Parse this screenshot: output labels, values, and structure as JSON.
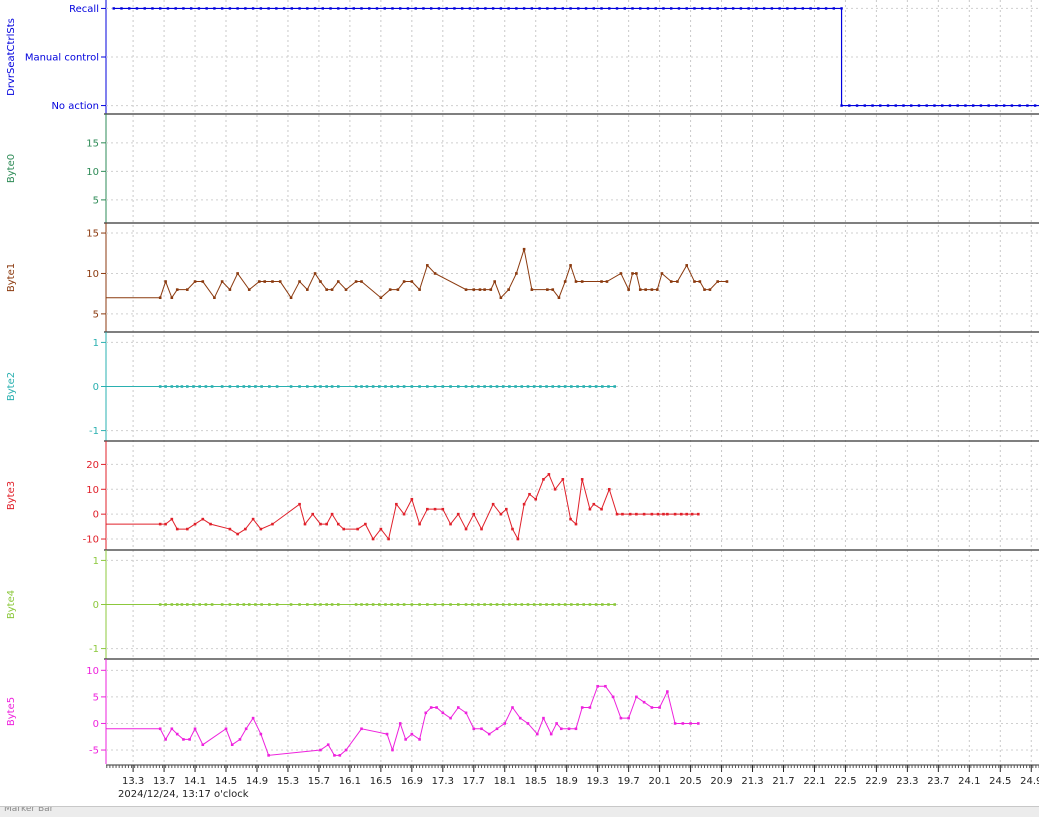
{
  "marker_bar": {
    "label": "Marker Bar"
  },
  "chart_data": {
    "type": "line",
    "xaxis": {
      "range": [
        12.95,
        25.0
      ],
      "ticks": [
        "13.3",
        "13.7",
        "14.1",
        "14.5",
        "14.9",
        "15.3",
        "15.7",
        "16.1",
        "16.5",
        "16.9",
        "17.3",
        "17.7",
        "18.1",
        "18.5",
        "18.9",
        "19.3",
        "19.7",
        "20.1",
        "20.5",
        "20.9",
        "21.3",
        "21.7",
        "22.1",
        "22.5",
        "22.9",
        "23.3",
        "23.7",
        "24.1",
        "24.5",
        "24.9"
      ],
      "caption": "2024/12/24, 13:17 o'clock"
    },
    "panels": [
      {
        "name": "DrvrSeatCtrlSts",
        "color": "#0000dd",
        "categories": [
          "No action",
          "Manual control",
          "Recall"
        ],
        "ylim": [
          -0.05,
          2.05
        ],
        "kind": "step",
        "segments": [
          {
            "x": [
              13.05,
              22.45
            ],
            "y": 2
          },
          {
            "x": [
              22.45,
              25.0
            ],
            "y": 0
          }
        ],
        "dots_dx": 0.1,
        "transition_x": 22.45
      },
      {
        "name": "Byte0",
        "color": "#2e8b57",
        "ylim": [
          2,
          19
        ],
        "yticks": [
          5,
          10,
          15
        ],
        "x": [],
        "y": []
      },
      {
        "name": "Byte1",
        "color": "#8b3a0f",
        "ylim": [
          3.5,
          15.5
        ],
        "yticks": [
          5,
          10,
          15
        ],
        "x": [
          12.95,
          13.65,
          13.72,
          13.8,
          13.87,
          14.0,
          14.1,
          14.2,
          14.35,
          14.45,
          14.55,
          14.65,
          14.8,
          14.93,
          15.0,
          15.1,
          15.2,
          15.34,
          15.45,
          15.55,
          15.65,
          15.72,
          15.8,
          15.87,
          15.95,
          16.05,
          16.18,
          16.25,
          16.5,
          16.62,
          16.72,
          16.8,
          16.9,
          17.0,
          17.1,
          17.2,
          17.6,
          17.7,
          17.78,
          17.84,
          17.92,
          17.97,
          18.05,
          18.15,
          18.25,
          18.35,
          18.45,
          18.65,
          18.72,
          18.8,
          18.88,
          18.95,
          19.02,
          19.1,
          19.35,
          19.42,
          19.6,
          19.7,
          19.75,
          19.8,
          19.85,
          19.92,
          20.0,
          20.07,
          20.13,
          20.25,
          20.33,
          20.45,
          20.55,
          20.62,
          20.68,
          20.75,
          20.85,
          20.97
        ],
        "y": [
          7,
          7,
          9,
          7,
          8,
          8,
          9,
          9,
          7,
          9,
          8,
          10,
          8,
          9,
          9,
          9,
          9,
          7,
          9,
          8,
          10,
          9,
          8,
          8,
          9,
          8,
          9,
          9,
          7,
          8,
          8,
          9,
          9,
          8,
          11,
          10,
          8,
          8,
          8,
          8,
          8,
          9,
          7,
          8,
          10,
          13,
          8,
          8,
          8,
          7,
          9,
          11,
          9,
          9,
          9,
          9,
          10,
          8,
          10,
          10,
          8,
          8,
          8,
          8,
          10,
          9,
          9,
          11,
          9,
          9,
          8,
          8,
          9,
          9
        ]
      },
      {
        "name": "Byte2",
        "color": "#2ab0b0",
        "ylim": [
          -1.1,
          1.1
        ],
        "yticks": [
          -1,
          0,
          1
        ],
        "x": [
          12.95,
          13.65,
          13.72,
          13.8,
          13.87,
          13.93,
          14.0,
          14.08,
          14.16,
          14.24,
          14.32,
          14.45,
          14.55,
          14.65,
          14.73,
          14.8,
          14.88,
          14.96,
          15.06,
          15.16,
          15.34,
          15.45,
          15.55,
          15.65,
          15.72,
          15.8,
          15.87,
          15.95,
          16.18,
          16.25,
          16.32,
          16.4,
          16.48,
          16.56,
          16.64,
          16.72,
          16.8,
          16.9,
          17.0,
          17.1,
          17.2,
          17.3,
          17.4,
          17.5,
          17.6,
          17.68,
          17.76,
          17.84,
          17.92,
          18.0,
          18.08,
          18.16,
          18.24,
          18.32,
          18.4,
          18.48,
          18.56,
          18.64,
          18.72,
          18.8,
          18.88,
          18.96,
          19.04,
          19.12,
          19.2,
          19.28,
          19.36,
          19.44,
          19.52
        ],
        "y": [
          0,
          0,
          0,
          0,
          0,
          0,
          0,
          0,
          0,
          0,
          0,
          0,
          0,
          0,
          0,
          0,
          0,
          0,
          0,
          0,
          0,
          0,
          0,
          0,
          0,
          0,
          0,
          0,
          0,
          0,
          0,
          0,
          0,
          0,
          0,
          0,
          0,
          0,
          0,
          0,
          0,
          0,
          0,
          0,
          0,
          0,
          0,
          0,
          0,
          0,
          0,
          0,
          0,
          0,
          0,
          0,
          0,
          0,
          0,
          0,
          0,
          0,
          0,
          0,
          0,
          0,
          0,
          0,
          0
        ]
      },
      {
        "name": "Byte3",
        "color": "#e0202a",
        "ylim": [
          -12,
          27
        ],
        "yticks": [
          -10,
          0,
          10,
          20
        ],
        "x": [
          12.95,
          13.65,
          13.72,
          13.8,
          13.87,
          14.0,
          14.1,
          14.2,
          14.3,
          14.55,
          14.65,
          14.75,
          14.85,
          14.95,
          15.1,
          15.45,
          15.52,
          15.62,
          15.72,
          15.8,
          15.87,
          15.95,
          16.02,
          16.2,
          16.3,
          16.4,
          16.5,
          16.6,
          16.7,
          16.8,
          16.9,
          17.0,
          17.1,
          17.2,
          17.3,
          17.4,
          17.5,
          17.6,
          17.7,
          17.8,
          17.95,
          18.05,
          18.12,
          18.2,
          18.27,
          18.35,
          18.42,
          18.5,
          18.6,
          18.67,
          18.75,
          18.85,
          18.95,
          19.02,
          19.1,
          19.2,
          19.25,
          19.35,
          19.45,
          19.55,
          19.62,
          19.72,
          19.8,
          19.9,
          20.0,
          20.08,
          20.15,
          20.2,
          20.3,
          20.38,
          20.45,
          20.52,
          20.6
        ],
        "y": [
          -4,
          -4,
          -4,
          -2,
          -6,
          -6,
          -4,
          -2,
          -4,
          -6,
          -8,
          -6,
          -2,
          -6,
          -4,
          4,
          -4,
          0,
          -4,
          -4,
          0,
          -4,
          -6,
          -6,
          -4,
          -10,
          -6,
          -10,
          4,
          0,
          6,
          -4,
          2,
          2,
          2,
          -4,
          0,
          -6,
          0,
          -6,
          4,
          0,
          2,
          -6,
          -10,
          4,
          8,
          6,
          14,
          16,
          10,
          14,
          -2,
          -4,
          14,
          2,
          4,
          2,
          10,
          0,
          0,
          0,
          0,
          0,
          0,
          0,
          0,
          0,
          0,
          0,
          0,
          0,
          0
        ]
      },
      {
        "name": "Byte4",
        "color": "#8cc83c",
        "ylim": [
          -1.1,
          1.1
        ],
        "yticks": [
          -1,
          0,
          1
        ],
        "x": [
          12.95,
          13.65,
          13.72,
          13.8,
          13.87,
          13.93,
          14.0,
          14.08,
          14.16,
          14.24,
          14.32,
          14.45,
          14.55,
          14.65,
          14.73,
          14.8,
          14.88,
          14.96,
          15.06,
          15.16,
          15.34,
          15.45,
          15.55,
          15.65,
          15.72,
          15.8,
          15.87,
          15.95,
          16.18,
          16.25,
          16.32,
          16.4,
          16.48,
          16.56,
          16.64,
          16.72,
          16.8,
          16.9,
          17.0,
          17.1,
          17.2,
          17.3,
          17.4,
          17.5,
          17.6,
          17.68,
          17.76,
          17.84,
          17.92,
          18.0,
          18.08,
          18.16,
          18.24,
          18.32,
          18.4,
          18.48,
          18.56,
          18.64,
          18.72,
          18.8,
          18.88,
          18.96,
          19.04,
          19.12,
          19.2,
          19.28,
          19.36,
          19.44,
          19.52
        ],
        "y": [
          0,
          0,
          0,
          0,
          0,
          0,
          0,
          0,
          0,
          0,
          0,
          0,
          0,
          0,
          0,
          0,
          0,
          0,
          0,
          0,
          0,
          0,
          0,
          0,
          0,
          0,
          0,
          0,
          0,
          0,
          0,
          0,
          0,
          0,
          0,
          0,
          0,
          0,
          0,
          0,
          0,
          0,
          0,
          0,
          0,
          0,
          0,
          0,
          0,
          0,
          0,
          0,
          0,
          0,
          0,
          0,
          0,
          0,
          0,
          0,
          0,
          0,
          0,
          0,
          0,
          0,
          0,
          0,
          0
        ]
      },
      {
        "name": "Byte5",
        "color": "#ee22dd",
        "ylim": [
          -6.5,
          11
        ],
        "yticks": [
          -5,
          0,
          5,
          10
        ],
        "x": [
          12.95,
          13.65,
          13.72,
          13.8,
          13.87,
          13.95,
          14.03,
          14.1,
          14.2,
          14.5,
          14.58,
          14.68,
          14.76,
          14.85,
          14.95,
          15.05,
          15.72,
          15.82,
          15.9,
          15.97,
          16.05,
          16.25,
          16.58,
          16.65,
          16.75,
          16.82,
          16.9,
          17.0,
          17.08,
          17.15,
          17.22,
          17.3,
          17.4,
          17.5,
          17.6,
          17.7,
          17.8,
          17.9,
          18.0,
          18.1,
          18.2,
          18.3,
          18.4,
          18.52,
          18.6,
          18.7,
          18.77,
          18.83,
          18.93,
          19.02,
          19.1,
          19.2,
          19.3,
          19.4,
          19.5,
          19.6,
          19.7,
          19.8,
          19.9,
          20.0,
          20.1,
          20.2,
          20.3,
          20.4,
          20.5,
          20.6
        ],
        "y": [
          -1,
          -1,
          -3,
          -1,
          -2,
          -3,
          -3,
          -1,
          -4,
          -1,
          -4,
          -3,
          -1,
          1,
          -2,
          -6,
          -5,
          -4,
          -6,
          -6,
          -5,
          -1,
          -2,
          -5,
          0,
          -3,
          -2,
          -3,
          2,
          3,
          3,
          2,
          1,
          3,
          2,
          -1,
          -1,
          -2,
          -1,
          0,
          3,
          1,
          0,
          -2,
          1,
          -2,
          0,
          -1,
          -1,
          -1,
          3,
          3,
          7,
          7,
          5,
          1,
          1,
          5,
          4,
          3,
          3,
          6,
          0,
          0,
          0,
          0
        ]
      }
    ]
  }
}
